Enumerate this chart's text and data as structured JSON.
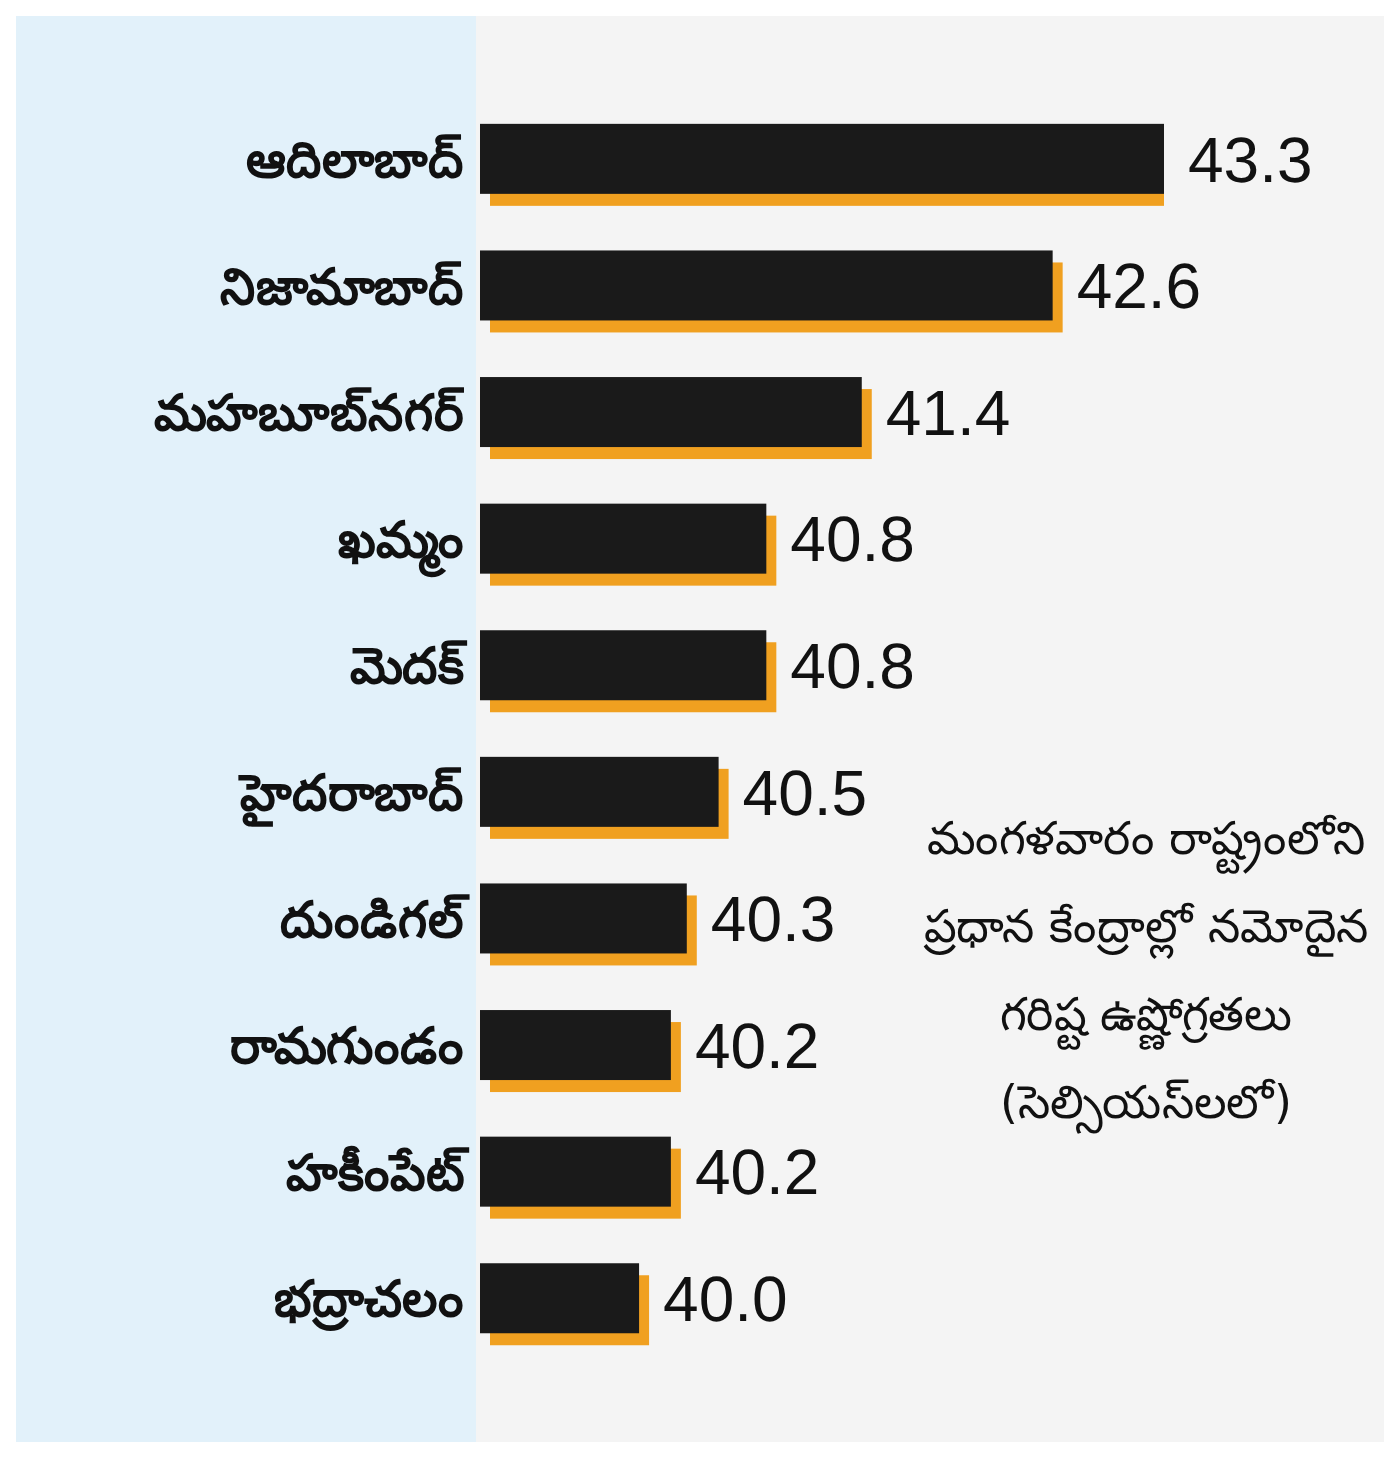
{
  "chart_data": {
    "type": "bar",
    "orientation": "horizontal",
    "categories": [
      "ఆదిలాబాద్",
      "నిజామాబాద్",
      "మహబూబ్‌నగర్",
      "ఖమ్మం",
      "మెదక్",
      "హైదరాబాద్",
      "దుండిగల్",
      "రామగుండం",
      "హకీంపేట్",
      "భద్రాచలం"
    ],
    "values": [
      43.3,
      42.6,
      41.4,
      40.8,
      40.8,
      40.5,
      40.3,
      40.2,
      40.2,
      40.0
    ],
    "value_labels": [
      "43.3",
      "42.6",
      "41.4",
      "40.8",
      "40.8",
      "40.5",
      "40.3",
      "40.2",
      "40.2",
      "40.0"
    ],
    "color": "#1a1a1a",
    "xlim": [
      39,
      43.3
    ],
    "tick_labels": "y",
    "grid": false,
    "legend": false,
    "annotations": [
      "మంగళవారం రాష్ట్రంలోని ప్రధాన కేంద్రాల్లో నమోదైన గరిష్ట ఉష్ణోగ్రతలు (సెల్సియస్‌లలో)"
    ]
  }
}
